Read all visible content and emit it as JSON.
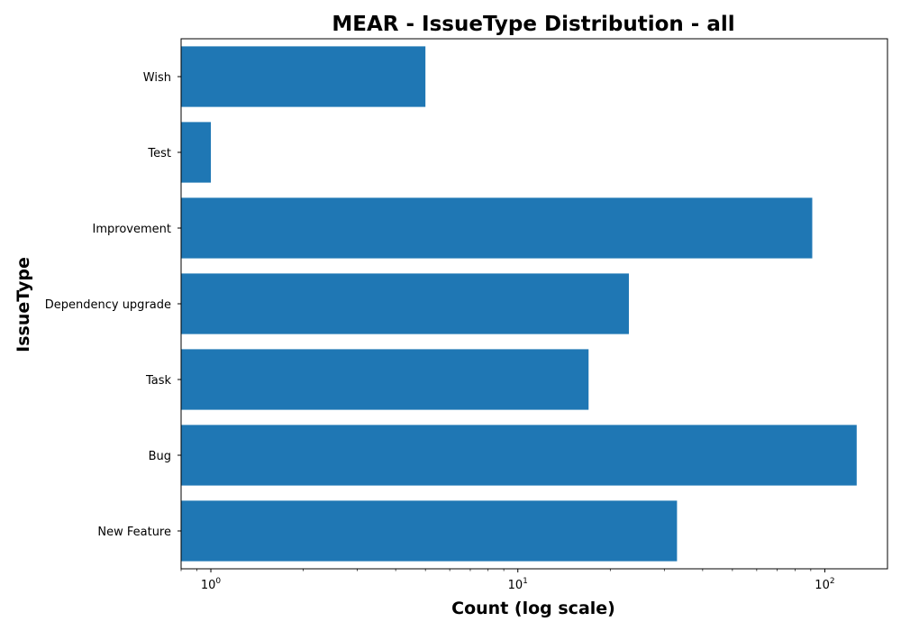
{
  "chart_data": {
    "type": "bar",
    "orientation": "horizontal",
    "title": "MEAR - IssueType Distribution - all",
    "xlabel": "Count (log scale)",
    "ylabel": "IssueType",
    "x_scale": "log",
    "xlim": [
      0.8,
      160
    ],
    "x_ticks": [
      {
        "value": 1,
        "base": "10",
        "exp": "0"
      },
      {
        "value": 10,
        "base": "10",
        "exp": "1"
      },
      {
        "value": 100,
        "base": "10",
        "exp": "2"
      }
    ],
    "categories": [
      "New Feature",
      "Bug",
      "Task",
      "Dependency upgrade",
      "Improvement",
      "Test",
      "Wish"
    ],
    "values": [
      33,
      127,
      17,
      23,
      91,
      1,
      5
    ],
    "bar_color": "#1f77b4",
    "grid": false
  }
}
